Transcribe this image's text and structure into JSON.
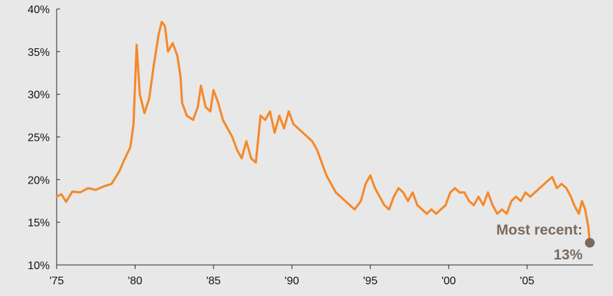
{
  "chart_data": {
    "type": "line",
    "title": "",
    "xlabel": "",
    "ylabel": "",
    "xlim": [
      1975,
      2009.2
    ],
    "ylim": [
      10,
      40
    ],
    "grid": false,
    "y_ticks": [
      {
        "value": 10,
        "label": "10%"
      },
      {
        "value": 15,
        "label": "15%"
      },
      {
        "value": 20,
        "label": "20%"
      },
      {
        "value": 25,
        "label": "25%"
      },
      {
        "value": 30,
        "label": "30%"
      },
      {
        "value": 35,
        "label": "35%"
      },
      {
        "value": 40,
        "label": "40%"
      }
    ],
    "x_ticks": [
      {
        "value": 1975,
        "label": "'75"
      },
      {
        "value": 1980,
        "label": "'80"
      },
      {
        "value": 1985,
        "label": "'85"
      },
      {
        "value": 1990,
        "label": "'90"
      },
      {
        "value": 1995,
        "label": "'95"
      },
      {
        "value": 2000,
        "label": "'00"
      },
      {
        "value": 2005,
        "label": "'05"
      }
    ],
    "series": [
      {
        "color": "#f5892a",
        "points": [
          [
            1975.0,
            18.0
          ],
          [
            1975.3,
            18.3
          ],
          [
            1975.6,
            17.4
          ],
          [
            1976.0,
            18.6
          ],
          [
            1976.5,
            18.5
          ],
          [
            1977.0,
            19.0
          ],
          [
            1977.5,
            18.8
          ],
          [
            1978.0,
            19.2
          ],
          [
            1978.5,
            19.5
          ],
          [
            1979.0,
            21.0
          ],
          [
            1979.3,
            22.3
          ],
          [
            1979.7,
            23.8
          ],
          [
            1979.9,
            26.5
          ],
          [
            1980.1,
            35.8
          ],
          [
            1980.3,
            30.0
          ],
          [
            1980.6,
            27.8
          ],
          [
            1980.9,
            29.5
          ],
          [
            1981.2,
            33.5
          ],
          [
            1981.5,
            37.0
          ],
          [
            1981.7,
            38.5
          ],
          [
            1981.9,
            38.0
          ],
          [
            1982.1,
            35.0
          ],
          [
            1982.4,
            36.0
          ],
          [
            1982.7,
            34.5
          ],
          [
            1982.9,
            32.0
          ],
          [
            1983.0,
            29.0
          ],
          [
            1983.3,
            27.5
          ],
          [
            1983.7,
            27.0
          ],
          [
            1984.0,
            28.5
          ],
          [
            1984.2,
            31.0
          ],
          [
            1984.5,
            28.5
          ],
          [
            1984.8,
            28.0
          ],
          [
            1985.0,
            30.5
          ],
          [
            1985.3,
            29.0
          ],
          [
            1985.6,
            27.0
          ],
          [
            1985.9,
            26.0
          ],
          [
            1986.2,
            25.0
          ],
          [
            1986.5,
            23.5
          ],
          [
            1986.8,
            22.5
          ],
          [
            1987.1,
            24.5
          ],
          [
            1987.4,
            22.5
          ],
          [
            1987.7,
            22.0
          ],
          [
            1988.0,
            27.5
          ],
          [
            1988.3,
            27.0
          ],
          [
            1988.6,
            28.0
          ],
          [
            1988.9,
            25.5
          ],
          [
            1989.2,
            27.5
          ],
          [
            1989.5,
            26.0
          ],
          [
            1989.8,
            28.0
          ],
          [
            1990.1,
            26.5
          ],
          [
            1990.4,
            26.0
          ],
          [
            1990.7,
            25.5
          ],
          [
            1991.0,
            25.0
          ],
          [
            1991.3,
            24.5
          ],
          [
            1991.6,
            23.5
          ],
          [
            1991.9,
            22.0
          ],
          [
            1992.2,
            20.5
          ],
          [
            1992.5,
            19.5
          ],
          [
            1992.8,
            18.5
          ],
          [
            1993.1,
            18.0
          ],
          [
            1993.4,
            17.5
          ],
          [
            1993.7,
            17.0
          ],
          [
            1994.0,
            16.5
          ],
          [
            1994.4,
            17.5
          ],
          [
            1994.7,
            19.5
          ],
          [
            1995.0,
            20.5
          ],
          [
            1995.3,
            19.0
          ],
          [
            1995.6,
            18.0
          ],
          [
            1995.9,
            17.0
          ],
          [
            1996.2,
            16.5
          ],
          [
            1996.5,
            18.0
          ],
          [
            1996.8,
            19.0
          ],
          [
            1997.1,
            18.5
          ],
          [
            1997.4,
            17.5
          ],
          [
            1997.7,
            18.5
          ],
          [
            1998.0,
            17.0
          ],
          [
            1998.3,
            16.5
          ],
          [
            1998.6,
            16.0
          ],
          [
            1998.9,
            16.5
          ],
          [
            1999.2,
            16.0
          ],
          [
            1999.5,
            16.5
          ],
          [
            1999.8,
            17.0
          ],
          [
            2000.1,
            18.5
          ],
          [
            2000.4,
            19.0
          ],
          [
            2000.7,
            18.5
          ],
          [
            2001.0,
            18.5
          ],
          [
            2001.3,
            17.5
          ],
          [
            2001.6,
            17.0
          ],
          [
            2001.9,
            18.0
          ],
          [
            2002.2,
            17.0
          ],
          [
            2002.5,
            18.5
          ],
          [
            2002.8,
            17.0
          ],
          [
            2003.1,
            16.0
          ],
          [
            2003.4,
            16.5
          ],
          [
            2003.7,
            16.0
          ],
          [
            2004.0,
            17.5
          ],
          [
            2004.3,
            18.0
          ],
          [
            2004.6,
            17.5
          ],
          [
            2004.9,
            18.5
          ],
          [
            2005.2,
            18.0
          ],
          [
            2005.5,
            18.5
          ],
          [
            2005.8,
            19.0
          ],
          [
            2006.1,
            19.5
          ],
          [
            2006.4,
            20.0
          ],
          [
            2006.6,
            20.3
          ],
          [
            2006.9,
            19.0
          ],
          [
            2007.2,
            19.5
          ],
          [
            2007.5,
            19.0
          ],
          [
            2007.8,
            18.0
          ],
          [
            2008.0,
            17.0
          ],
          [
            2008.3,
            16.0
          ],
          [
            2008.5,
            17.5
          ],
          [
            2008.7,
            16.5
          ],
          [
            2008.9,
            14.5
          ],
          [
            2009.0,
            12.6
          ]
        ]
      }
    ],
    "annotation": {
      "line1": "Most recent:",
      "line2": "13%",
      "x": 2009.0,
      "y": 12.6,
      "color": "#7a6a5e"
    }
  }
}
